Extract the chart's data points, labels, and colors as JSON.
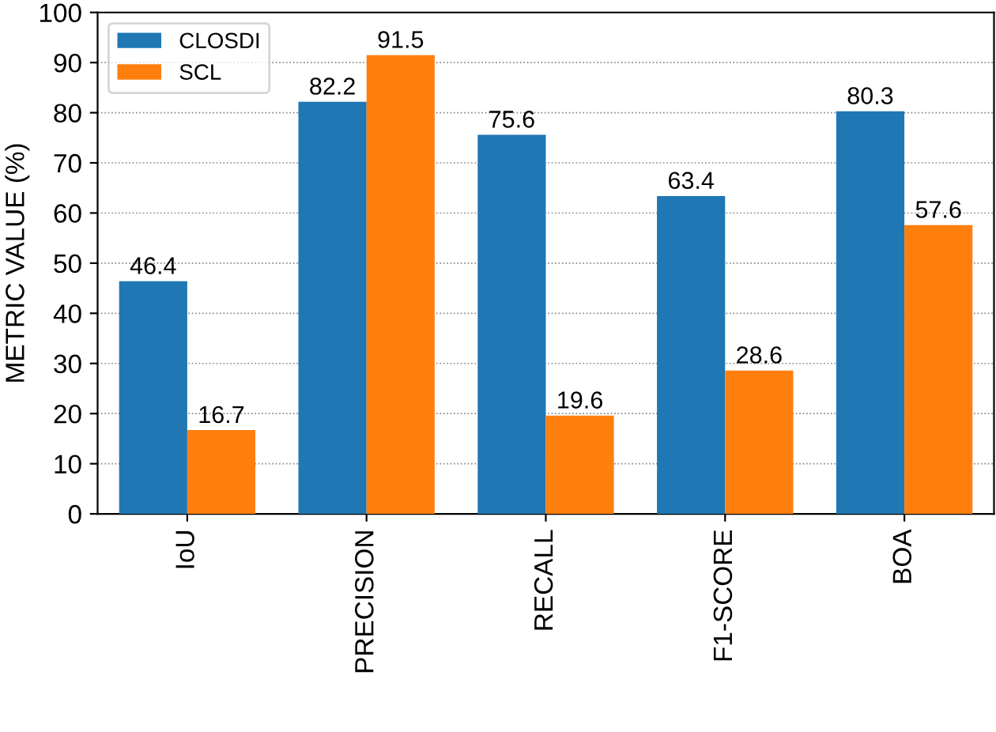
{
  "chart_data": {
    "type": "bar",
    "ylabel": "METRIC VALUE (%)",
    "categories": [
      "IoU",
      "PRECISION",
      "RECALL",
      "F1-SCORE",
      "BOA"
    ],
    "series": [
      {
        "name": "CLOSDI",
        "color": "#1f77b4",
        "values": [
          46.4,
          82.2,
          75.6,
          63.4,
          80.3
        ]
      },
      {
        "name": "SCL",
        "color": "#ff7f0e",
        "values": [
          16.7,
          91.5,
          19.6,
          28.6,
          57.6
        ]
      }
    ],
    "ylim": [
      0,
      100
    ],
    "yticks": [
      0,
      10,
      20,
      30,
      40,
      50,
      60,
      70,
      80,
      90,
      100
    ],
    "grid": "y",
    "legend": "top left",
    "data_labels": true
  }
}
